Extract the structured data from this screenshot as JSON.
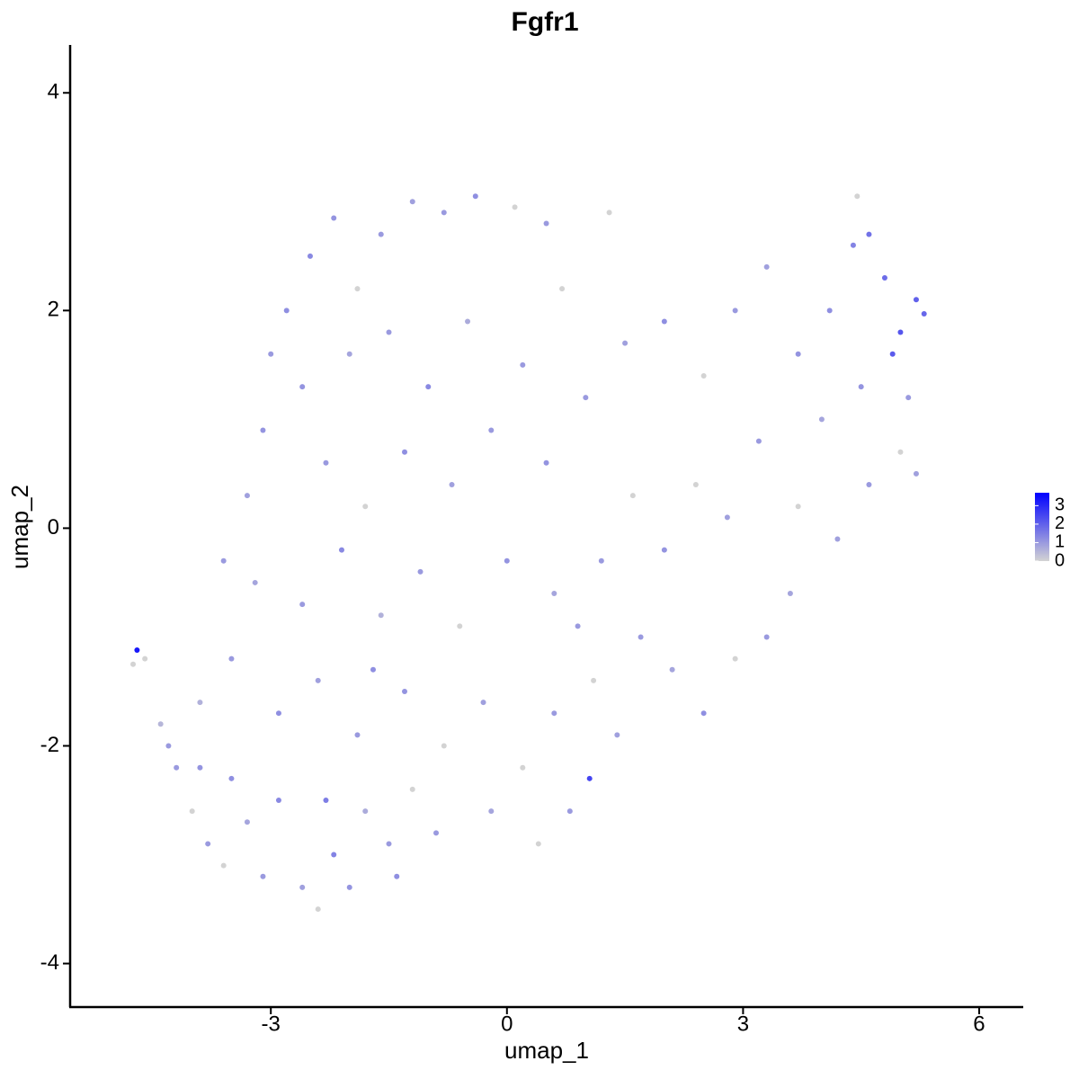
{
  "chart_data": {
    "type": "scatter",
    "title": "Fgfr1",
    "x_label": "umap_1",
    "y_label": "umap_2",
    "xlim": [
      -5.55,
      6.56
    ],
    "ylim": [
      -4.4,
      4.44
    ],
    "xticks": [
      -3,
      0,
      3,
      6
    ],
    "yticks": [
      -4,
      -2,
      0,
      2,
      4
    ],
    "color_lim": [
      0,
      3.7
    ],
    "color_ticks": [
      0,
      1,
      2,
      3
    ],
    "colors": [
      "#d3d3d3",
      "#0000ff"
    ],
    "x": [
      -4.7,
      -4.75,
      -4.6,
      -4.4,
      -4.2,
      -4.0,
      -3.8,
      -3.6,
      -3.5,
      -3.3,
      -3.1,
      -2.9,
      -2.6,
      -2.4,
      -2.2,
      -2.0,
      -1.8,
      -1.5,
      -1.4,
      -1.2,
      -3.9,
      -3.5,
      -3.2,
      -3.6,
      -3.3,
      -3.1,
      -3.0,
      -2.8,
      -2.5,
      -2.2,
      -1.9,
      -1.6,
      -1.2,
      -0.8,
      -0.4,
      0.1,
      0.5,
      -2.6,
      -2.0,
      -1.5,
      -1.0,
      -0.5,
      0.2,
      0.7,
      -2.3,
      -1.8,
      -1.3,
      -0.7,
      -0.2,
      0.5,
      -2.6,
      -2.1,
      -1.6,
      -1.1,
      -0.6,
      0.0,
      0.6,
      -2.9,
      -2.4,
      -1.9,
      -1.3,
      -0.8,
      -0.3,
      0.2,
      0.6,
      -0.9,
      -0.2,
      0.4,
      0.8,
      1.05,
      1.1,
      1.4,
      1.7,
      2.1,
      2.5,
      2.9,
      3.3,
      3.6,
      1.2,
      1.6,
      2.0,
      2.4,
      2.8,
      3.2,
      3.7,
      4.2,
      4.6,
      5.0,
      1.0,
      1.5,
      2.0,
      2.5,
      2.9,
      3.3,
      3.7,
      4.1,
      4.4,
      4.6,
      4.8,
      5.0,
      5.2,
      5.3,
      4.9,
      4.5,
      4.0,
      4.45,
      5.1,
      5.2,
      1.3,
      0.9,
      -4.3,
      -3.9,
      -2.3,
      -1.7
    ],
    "y": [
      -1.12,
      -1.25,
      -1.2,
      -1.8,
      -2.2,
      -2.6,
      -2.9,
      -3.1,
      -2.3,
      -2.7,
      -3.2,
      -2.5,
      -3.3,
      -3.5,
      -3.0,
      -3.3,
      -2.6,
      -2.9,
      -3.2,
      -2.4,
      -1.6,
      -1.2,
      -0.5,
      -0.3,
      0.3,
      0.9,
      1.6,
      2.0,
      2.5,
      2.85,
      2.2,
      2.7,
      3.0,
      2.9,
      3.05,
      2.95,
      2.8,
      1.3,
      1.6,
      1.8,
      1.3,
      1.9,
      1.5,
      2.2,
      0.6,
      0.2,
      0.7,
      0.4,
      0.9,
      0.6,
      -0.7,
      -0.2,
      -0.8,
      -0.4,
      -0.9,
      -0.3,
      -0.6,
      -1.7,
      -1.4,
      -1.9,
      -1.5,
      -2.0,
      -1.6,
      -2.2,
      -1.7,
      -2.8,
      -2.6,
      -2.9,
      -2.6,
      -2.3,
      -1.4,
      -1.9,
      -1.0,
      -1.3,
      -1.7,
      -1.2,
      -1.0,
      -0.6,
      -0.3,
      0.3,
      -0.2,
      0.4,
      0.1,
      0.8,
      0.2,
      -0.1,
      0.4,
      0.7,
      1.2,
      1.7,
      1.9,
      1.4,
      2.0,
      2.4,
      1.6,
      2.0,
      2.6,
      2.7,
      2.3,
      1.8,
      2.1,
      1.97,
      1.6,
      1.3,
      1.0,
      3.05,
      1.2,
      0.5,
      2.9,
      -0.9,
      -2.0,
      -2.2,
      -2.5,
      -1.3
    ],
    "values": [
      3.3,
      0,
      0,
      0.5,
      1,
      0,
      1,
      0,
      1.2,
      0.8,
      1,
      1.3,
      0.9,
      0,
      1.4,
      1.1,
      0.7,
      1,
      1.2,
      0,
      0.6,
      1,
      0.8,
      1,
      0.9,
      1.1,
      1,
      1.2,
      1.3,
      1.1,
      0,
      1,
      0.9,
      1,
      1.2,
      0,
      1,
      1.1,
      0.8,
      1,
      1.3,
      0.7,
      1,
      0,
      1,
      0,
      1.2,
      0.9,
      1,
      1.1,
      1,
      1.3,
      0.6,
      1,
      0,
      1.1,
      0.8,
      1.2,
      0.9,
      1,
      1.1,
      0,
      0.9,
      0,
      1,
      1,
      0.8,
      0,
      1,
      2.5,
      0,
      0.9,
      1,
      0.8,
      1.2,
      0,
      1,
      0.8,
      1,
      0,
      1.1,
      0,
      0.9,
      1,
      0,
      0.9,
      1,
      0,
      1,
      0.9,
      1.2,
      0,
      1,
      0.9,
      1.1,
      1.2,
      1.4,
      1.7,
      1.8,
      2.2,
      2.0,
      1.9,
      2.1,
      1.1,
      0.8,
      0,
      1,
      0.9,
      0,
      1,
      1,
      1.1,
      1.5,
      1.2
    ]
  }
}
